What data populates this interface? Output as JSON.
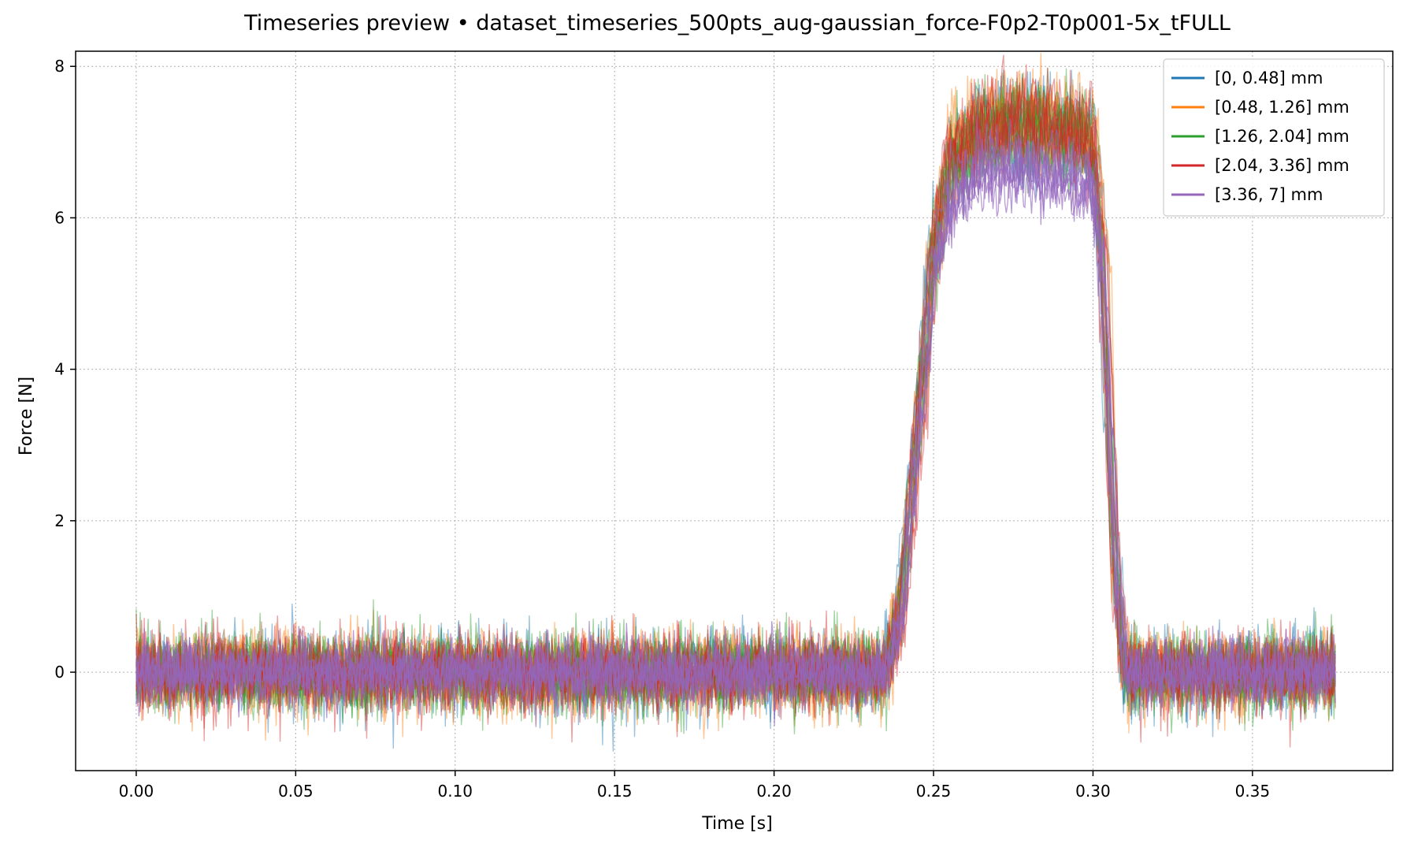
{
  "chart_data": {
    "type": "line",
    "title": "Timeseries preview • dataset_timeseries_500pts_aug-gaussian_force-F0p2-T0p001-5x_tFULL",
    "xlabel": "Time [s]",
    "ylabel": "Force [N]",
    "xlim": [
      -0.019,
      0.394
    ],
    "ylim": [
      -1.3,
      8.2
    ],
    "xticks": [
      {
        "value": 0.0,
        "label": "0.00"
      },
      {
        "value": 0.05,
        "label": "0.05"
      },
      {
        "value": 0.1,
        "label": "0.10"
      },
      {
        "value": 0.15,
        "label": "0.15"
      },
      {
        "value": 0.2,
        "label": "0.20"
      },
      {
        "value": 0.25,
        "label": "0.25"
      },
      {
        "value": 0.3,
        "label": "0.30"
      },
      {
        "value": 0.35,
        "label": "0.35"
      }
    ],
    "yticks": [
      {
        "value": 0,
        "label": "0"
      },
      {
        "value": 2,
        "label": "2"
      },
      {
        "value": 4,
        "label": "4"
      },
      {
        "value": 6,
        "label": "6"
      },
      {
        "value": 8,
        "label": "8"
      }
    ],
    "grid": true,
    "legend_position": "top-right",
    "series": [
      {
        "name": "[0, 0.48] mm",
        "color": "#1f77b4",
        "x": [
          0.0,
          0.235,
          0.239,
          0.25,
          0.255,
          0.265,
          0.28,
          0.29,
          0.3,
          0.303,
          0.307,
          0.31,
          0.376
        ],
        "y": [
          0.0,
          0.0,
          0.8,
          5.6,
          6.7,
          7.2,
          7.2,
          7.2,
          7.1,
          5.5,
          1.5,
          0.0,
          0.0
        ],
        "noise_amplitude": 0.25
      },
      {
        "name": "[0.48, 1.26] mm",
        "color": "#ff7f0e",
        "x": [
          0.0,
          0.235,
          0.24,
          0.25,
          0.255,
          0.265,
          0.28,
          0.29,
          0.3,
          0.304,
          0.307,
          0.31,
          0.376
        ],
        "y": [
          0.0,
          0.0,
          0.9,
          5.5,
          6.8,
          7.2,
          7.3,
          7.2,
          7.1,
          5.5,
          1.4,
          0.0,
          0.0
        ],
        "noise_amplitude": 0.25
      },
      {
        "name": "[1.26, 2.04] mm",
        "color": "#2ca02c",
        "x": [
          0.0,
          0.235,
          0.24,
          0.25,
          0.255,
          0.265,
          0.28,
          0.29,
          0.3,
          0.303,
          0.307,
          0.31,
          0.376
        ],
        "y": [
          0.0,
          0.0,
          0.8,
          5.4,
          6.6,
          7.1,
          7.2,
          7.1,
          7.0,
          5.4,
          1.5,
          0.0,
          0.0
        ],
        "noise_amplitude": 0.25
      },
      {
        "name": "[2.04, 3.36] mm",
        "color": "#d62728",
        "x": [
          0.0,
          0.235,
          0.24,
          0.25,
          0.255,
          0.265,
          0.28,
          0.29,
          0.3,
          0.303,
          0.307,
          0.31,
          0.376
        ],
        "y": [
          0.0,
          0.0,
          0.8,
          5.5,
          6.8,
          7.3,
          7.3,
          7.2,
          7.1,
          5.6,
          1.4,
          0.0,
          0.0
        ],
        "noise_amplitude": 0.25
      },
      {
        "name": "[3.36, 7] mm",
        "color": "#9467bd",
        "x": [
          0.0,
          0.235,
          0.24,
          0.25,
          0.255,
          0.265,
          0.28,
          0.29,
          0.3,
          0.303,
          0.307,
          0.31,
          0.376
        ],
        "y": [
          0.0,
          0.0,
          0.8,
          5.4,
          6.3,
          6.7,
          6.7,
          6.6,
          6.5,
          5.3,
          1.5,
          0.0,
          0.0
        ],
        "noise_amplitude": 0.2
      }
    ]
  }
}
